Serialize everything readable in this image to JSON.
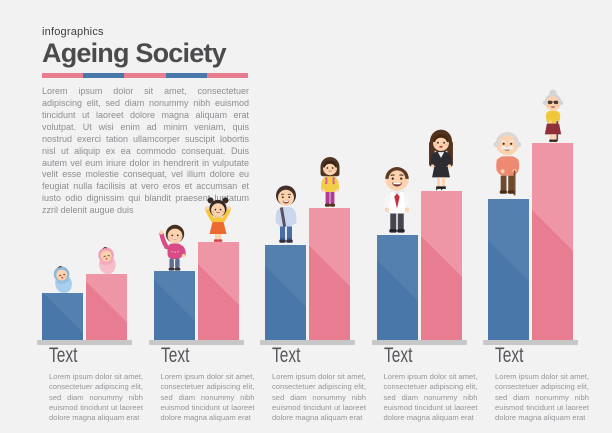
{
  "header": {
    "eyebrow": "infographics",
    "title": "Ageing Society",
    "underline_segments": [
      "#e87d90",
      "#4a77a9",
      "#e87d90",
      "#4a77a9",
      "#e87d90"
    ],
    "intro": "Lorem ipsum dolor sit amet, consectetuer adipiscing elit, sed diam nonummy nibh euismod tincidunt ut laoreet dolore magna aliquam erat volutpat. Ut wisi enim ad minim veniam, quis nostrud exerci tation ullamcorper suscipit lobortis nisl ut aliquip ex ea commodo consequat. Duis autem vel eum iriure dolor in hendrerit in vulputate velit esse molestie consequat, vel illum dolore eu feugiat nulla facilisis at vero eros et accumsan et iusto odio dignissim qui blandit praesent luptatum zzril delenit augue duis"
  },
  "palette": {
    "background": "#f2f2f3",
    "bar_blue_highlight": "#5480b0",
    "bar_pink_highlight": "#ef96a6",
    "base_gray": "#c7c7c8",
    "title_gray": "#4b4b4d",
    "body_text_gray": "#8e8e92"
  },
  "chart_data": {
    "type": "bar",
    "title": "Ageing Society",
    "categories": [
      "infants",
      "children",
      "teenagers",
      "adults",
      "seniors"
    ],
    "series": [
      {
        "name": "blue (left bar of each pair)",
        "color": "#4a77a9",
        "values": [
          47,
          69,
          95,
          105,
          141
        ]
      },
      {
        "name": "pink (right bar of each pair)",
        "color": "#e87d91",
        "values": [
          66,
          98,
          132,
          149,
          197
        ]
      }
    ],
    "unit": "bar height in screen px (no numeric axis shown)",
    "xlabel": "",
    "ylabel": "",
    "grid": false,
    "legend": "none",
    "annotations": "a cartoon character of the matching age group stands on top of each bar"
  },
  "icons": {
    "characters": [
      "baby-boy",
      "baby-girl",
      "toddler-boy",
      "toddler-girl",
      "teen-boy",
      "teen-girl",
      "adult-man",
      "adult-woman",
      "elderly-man",
      "elderly-woman"
    ]
  },
  "footer_items": [
    {
      "heading": "Text",
      "body": "Lorem ipsum dolor sit amet, consectetuer adipiscing elit, sed diam nonummy nibh euismod tincidunt ut laoreet dolore magna aliquam erat"
    },
    {
      "heading": "Text",
      "body": "Lorem ipsum dolor sit amet, consectetuer adipiscing elit, sed diam nonummy nibh euismod tincidunt ut laoreet dolore magna aliquam erat"
    },
    {
      "heading": "Text",
      "body": "Lorem ipsum dolor sit amet, consectetuer adipiscing elit, sed diam nonummy nibh euismod tincidunt ut laoreet dolore magna aliquam erat"
    },
    {
      "heading": "Text",
      "body": "Lorem ipsum dolor sit amet, consectetuer adipiscing elit, sed diam nonummy nibh euismod tincidunt ut laoreet dolore magna aliquam erat"
    },
    {
      "heading": "Text",
      "body": "Lorem ipsum dolor sit amet, consectetuer adipiscing elit, sed diam nonummy nibh euismod tincidunt ut laoreet dolore magna aliquam erat"
    }
  ]
}
